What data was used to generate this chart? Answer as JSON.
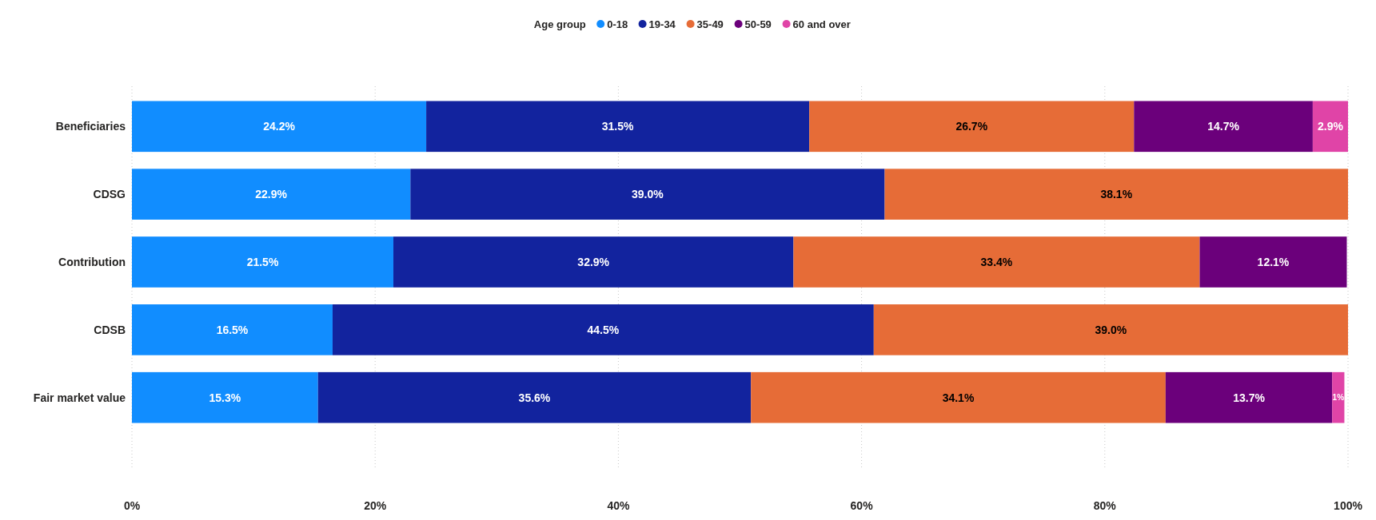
{
  "chart_data": {
    "type": "bar",
    "orientation": "horizontal",
    "stacked": true,
    "legend_title": "Age group",
    "legend": "top",
    "grid": "x",
    "categories": [
      "Beneficiaries",
      "CDSG",
      "Contribution",
      "CDSB",
      "Fair market value"
    ],
    "xlim": [
      0,
      100
    ],
    "xticks": [
      {
        "value": 0,
        "label": "0%"
      },
      {
        "value": 20,
        "label": "20%"
      },
      {
        "value": 40,
        "label": "40%"
      },
      {
        "value": 60,
        "label": "60%"
      },
      {
        "value": 80,
        "label": "80%"
      },
      {
        "value": 100,
        "label": "100%"
      }
    ],
    "series": [
      {
        "name": "0-18",
        "color": "#118dff",
        "values": [
          24.2,
          22.9,
          21.5,
          16.5,
          15.3
        ],
        "value_labels": [
          "24.2%",
          "22.9%",
          "21.5%",
          "16.5%",
          "15.3%"
        ]
      },
      {
        "name": "19-34",
        "color": "#12239e",
        "values": [
          31.5,
          39.0,
          32.9,
          44.5,
          35.6
        ],
        "value_labels": [
          "31.5%",
          "39.0%",
          "32.9%",
          "44.5%",
          "35.6%"
        ]
      },
      {
        "name": "35-49",
        "color": "#e66c37",
        "values": [
          26.7,
          38.1,
          33.4,
          39.0,
          34.1
        ],
        "value_labels": [
          "26.7%",
          "38.1%",
          "33.4%",
          "39.0%",
          "34.1%"
        ]
      },
      {
        "name": "50-59",
        "color": "#6b007b",
        "values": [
          14.7,
          null,
          12.1,
          null,
          13.7
        ],
        "value_labels": [
          "14.7%",
          null,
          "12.1%",
          null,
          "13.7%"
        ]
      },
      {
        "name": "60 and over",
        "color": "#e044a7",
        "values": [
          2.9,
          null,
          null,
          null,
          1
        ],
        "value_labels": [
          "2.9%",
          null,
          null,
          null,
          "1%"
        ]
      }
    ]
  }
}
